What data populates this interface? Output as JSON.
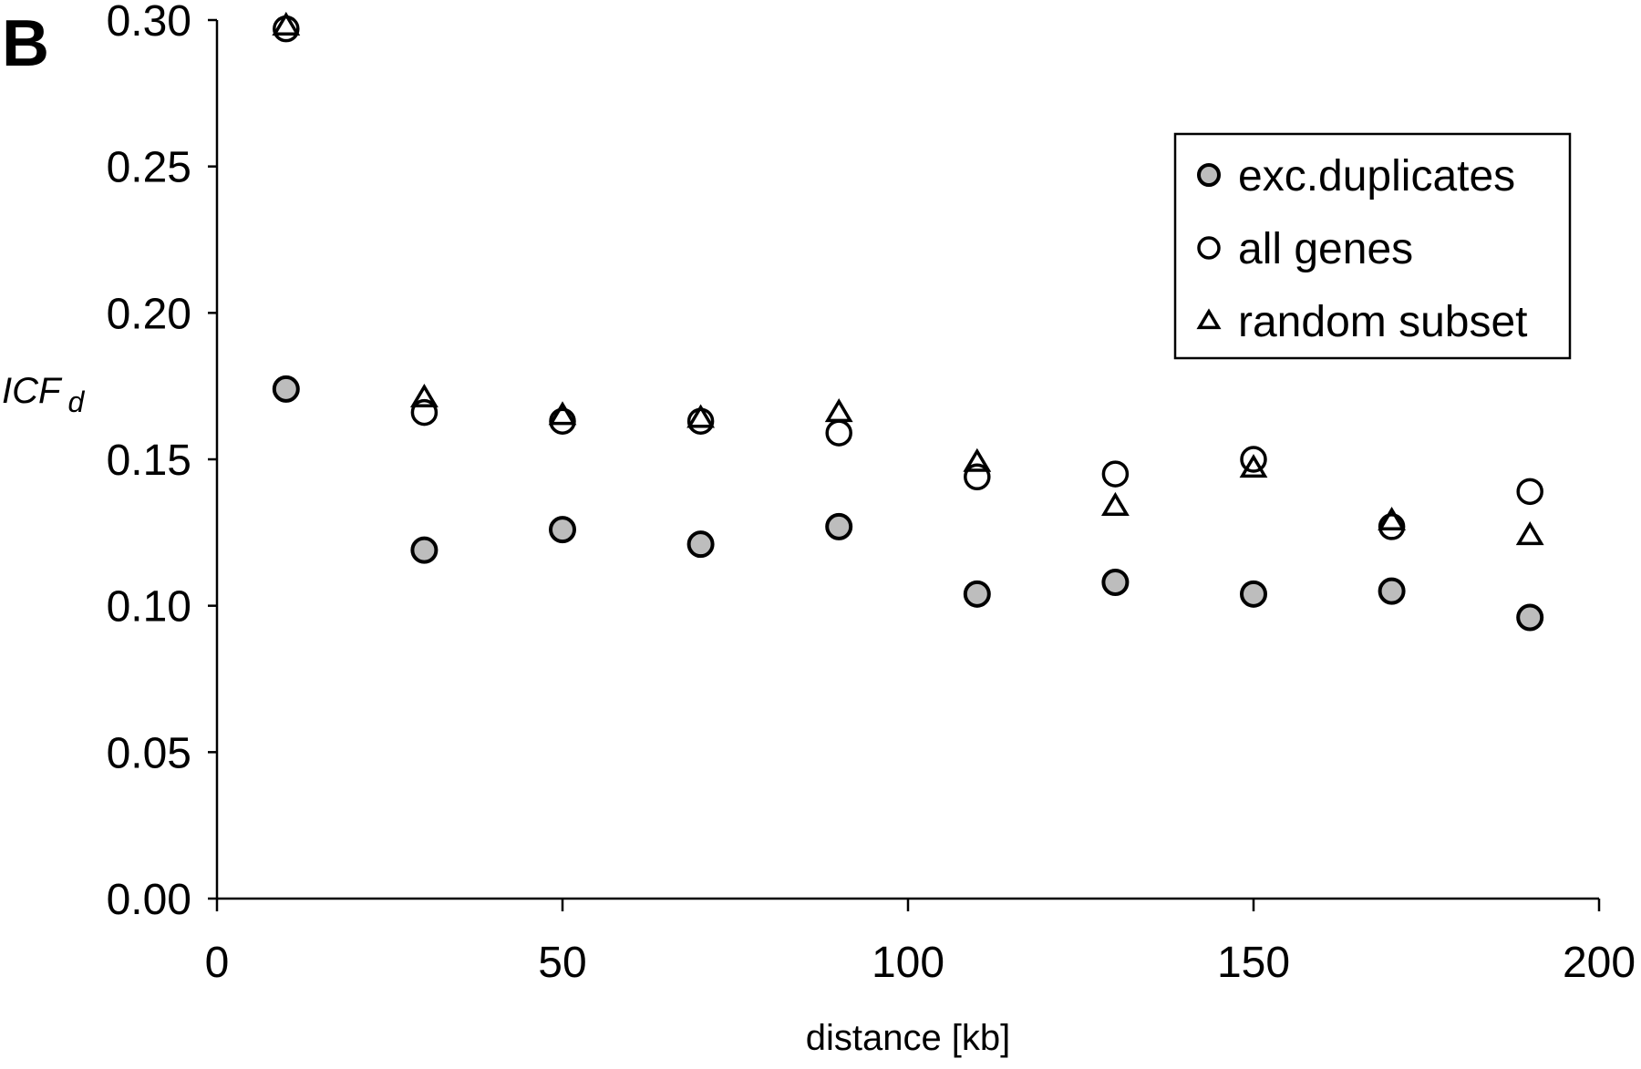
{
  "panel_label": "B",
  "chart_data": {
    "type": "scatter",
    "title": "",
    "xlabel": "distance [kb]",
    "ylabel": {
      "main": "ICF",
      "sub": "d"
    },
    "xlim": [
      0,
      200
    ],
    "ylim": [
      0,
      0.3
    ],
    "xticks": [
      "0",
      "50",
      "100",
      "150",
      "200"
    ],
    "yticks": [
      "0.00",
      "0.05",
      "0.10",
      "0.15",
      "0.20",
      "0.25",
      "0.30"
    ],
    "grid": false,
    "legend_position": "top-right",
    "x": [
      10,
      30,
      50,
      70,
      90,
      110,
      130,
      150,
      170,
      190
    ],
    "series": [
      {
        "name": "exc.duplicates",
        "marker": "filled-circle",
        "values": [
          0.174,
          0.119,
          0.126,
          0.121,
          0.127,
          0.104,
          0.108,
          0.104,
          0.105,
          0.096
        ]
      },
      {
        "name": "all genes",
        "marker": "open-circle",
        "values": [
          0.297,
          0.166,
          0.163,
          0.163,
          0.159,
          0.144,
          0.145,
          0.15,
          0.127,
          0.139
        ]
      },
      {
        "name": "random subset",
        "marker": "open-triangle",
        "values": [
          0.298,
          0.171,
          0.165,
          0.164,
          0.166,
          0.149,
          0.134,
          0.147,
          0.129,
          0.124
        ]
      }
    ],
    "colors": {
      "filled_marker": "#bdbdbd",
      "stroke": "#000000"
    }
  }
}
